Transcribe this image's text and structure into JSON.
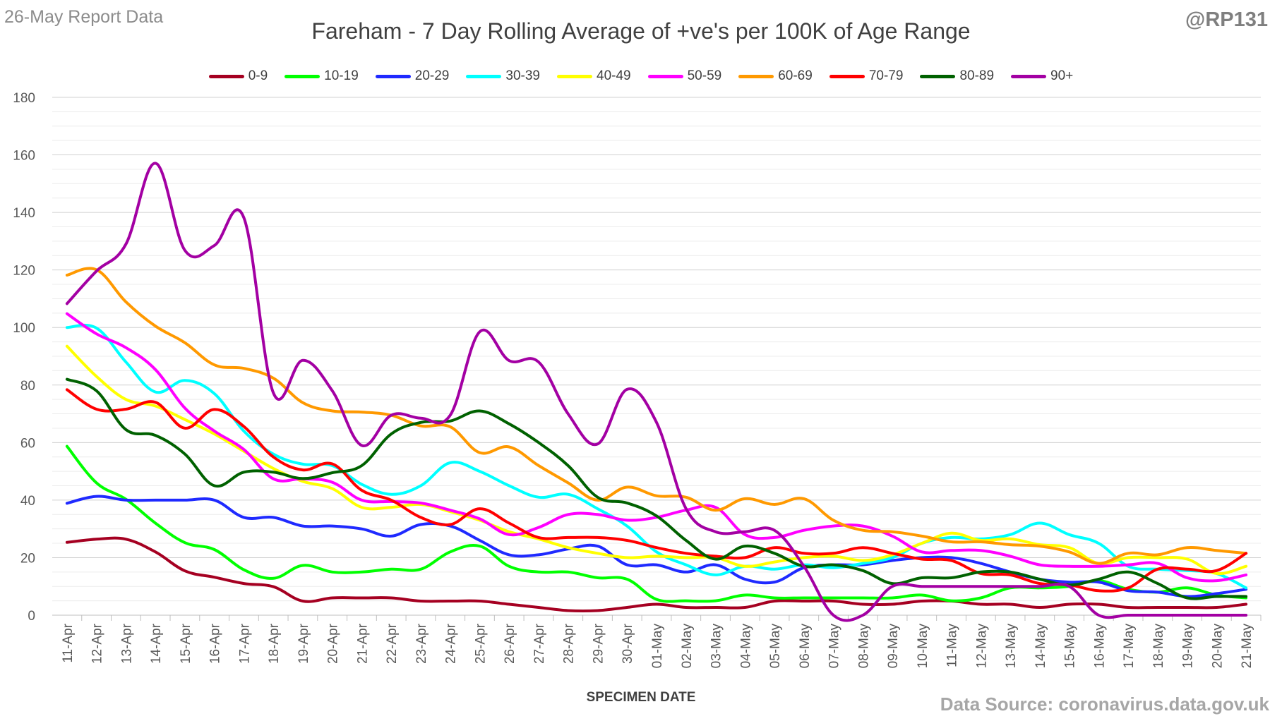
{
  "header": {
    "report_date": "26-May Report Data",
    "handle": "@RP131",
    "source": "Data Source: coronavirus.data.gov.uk"
  },
  "chart_data": {
    "type": "line",
    "title": "Fareham - 7 Day Rolling Average of +ve's per 100K of Age Range",
    "xlabel": "SPECIMEN DATE",
    "ylabel": "",
    "ylim": [
      0,
      180
    ],
    "yticks": [
      0,
      20,
      40,
      60,
      80,
      100,
      120,
      140,
      160,
      180
    ],
    "grid": true,
    "legend_position": "top",
    "categories": [
      "11-Apr",
      "12-Apr",
      "13-Apr",
      "14-Apr",
      "15-Apr",
      "16-Apr",
      "17-Apr",
      "18-Apr",
      "19-Apr",
      "20-Apr",
      "21-Apr",
      "22-Apr",
      "23-Apr",
      "24-Apr",
      "25-Apr",
      "26-Apr",
      "27-Apr",
      "28-Apr",
      "29-Apr",
      "30-Apr",
      "01-May",
      "02-May",
      "03-May",
      "04-May",
      "05-May",
      "06-May",
      "07-May",
      "08-May",
      "09-May",
      "10-May",
      "11-May",
      "12-May",
      "13-May",
      "14-May",
      "15-May",
      "16-May",
      "17-May",
      "18-May",
      "19-May",
      "20-May",
      "21-May"
    ],
    "series": [
      {
        "name": "0-9",
        "color": "#a50021",
        "values": [
          25.3,
          26.4,
          26.4,
          22.0,
          15.4,
          13.2,
          11.0,
          9.9,
          4.9,
          6.0,
          6.0,
          6.0,
          4.9,
          4.9,
          4.9,
          3.8,
          2.7,
          1.6,
          1.6,
          2.7,
          3.8,
          2.7,
          2.7,
          2.7,
          4.9,
          4.9,
          4.9,
          3.8,
          3.8,
          4.9,
          4.9,
          3.8,
          3.8,
          2.7,
          3.8,
          3.8,
          2.7,
          2.7,
          2.7,
          2.7,
          3.8
        ]
      },
      {
        "name": "10-19",
        "color": "#00ff00",
        "values": [
          58.7,
          46.0,
          40.3,
          32.0,
          25.2,
          22.8,
          15.8,
          12.8,
          17.3,
          15.0,
          15.0,
          16.0,
          16.0,
          22.0,
          24.0,
          17.0,
          15.0,
          15.0,
          13.0,
          12.5,
          5.5,
          5.0,
          5.0,
          7.0,
          6.0,
          6.0,
          6.0,
          6.0,
          6.0,
          7.0,
          5.0,
          6.0,
          9.5,
          9.5,
          10.0,
          12.0,
          9.0,
          8.0,
          9.5,
          7.0,
          6.0
        ]
      },
      {
        "name": "20-29",
        "color": "#1f2aff",
        "values": [
          38.9,
          41.3,
          40.0,
          40.0,
          40.0,
          40.0,
          34.0,
          34.0,
          31.0,
          31.0,
          30.0,
          27.5,
          31.5,
          31.0,
          26.0,
          21.0,
          21.0,
          23.0,
          24.0,
          17.5,
          17.5,
          15.0,
          17.5,
          12.5,
          11.5,
          16.5,
          17.5,
          17.5,
          19.0,
          20.0,
          20.0,
          18.0,
          15.0,
          12.5,
          11.5,
          11.5,
          8.5,
          8.0,
          6.5,
          7.5,
          9.0
        ]
      },
      {
        "name": "30-39",
        "color": "#00ffff",
        "values": [
          100.0,
          99.8,
          88.0,
          77.6,
          81.6,
          77.0,
          64.0,
          56.0,
          52.5,
          52.0,
          45.5,
          42.0,
          45.0,
          53.0,
          50.0,
          45.0,
          41.0,
          42.0,
          37.0,
          31.0,
          22.0,
          17.5,
          14.0,
          17.0,
          16.0,
          17.5,
          16.5,
          18.0,
          20.0,
          25.0,
          27.0,
          26.5,
          28.0,
          32.0,
          28.0,
          25.0,
          17.0,
          16.0,
          15.5,
          14.5,
          9.5
        ]
      },
      {
        "name": "40-49",
        "color": "#ffff00",
        "values": [
          93.5,
          83.0,
          75.0,
          72.7,
          68.0,
          63.0,
          57.0,
          51.0,
          46.5,
          44.0,
          37.5,
          37.5,
          38.5,
          36.0,
          33.0,
          29.0,
          26.5,
          23.5,
          21.5,
          20.0,
          20.5,
          20.0,
          20.0,
          17.0,
          18.5,
          20.0,
          20.5,
          19.0,
          21.0,
          25.0,
          28.5,
          26.0,
          26.5,
          24.5,
          23.5,
          18.0,
          20.0,
          20.0,
          19.5,
          14.5,
          17.0
        ]
      },
      {
        "name": "50-59",
        "color": "#ff00ff",
        "values": [
          104.8,
          97.8,
          93.0,
          85.4,
          72.0,
          64.0,
          57.6,
          47.4,
          47.4,
          46.2,
          40.0,
          39.5,
          39.0,
          36.5,
          33.5,
          28.0,
          30.5,
          35.0,
          35.0,
          33.0,
          34.0,
          36.5,
          37.5,
          28.0,
          27.0,
          29.5,
          31.0,
          31.0,
          27.5,
          22.0,
          22.5,
          22.5,
          20.5,
          17.5,
          17.0,
          17.0,
          17.5,
          18.0,
          13.0,
          12.0,
          14.0
        ]
      },
      {
        "name": "60-69",
        "color": "#ff9900",
        "values": [
          118.2,
          120.1,
          108.9,
          100.5,
          94.7,
          87.0,
          85.8,
          82.4,
          73.9,
          71.0,
          70.6,
          69.5,
          65.8,
          65.5,
          56.5,
          58.5,
          52.0,
          46.0,
          40.0,
          44.5,
          41.5,
          41.0,
          36.5,
          40.5,
          38.5,
          40.5,
          33.0,
          29.5,
          29.0,
          27.5,
          25.5,
          25.5,
          24.5,
          24.0,
          22.0,
          18.0,
          21.5,
          21.0,
          23.5,
          22.5,
          21.5
        ]
      },
      {
        "name": "70-79",
        "color": "#ff0000",
        "values": [
          78.4,
          71.6,
          71.6,
          74.0,
          65.0,
          71.5,
          65.6,
          55.0,
          50.5,
          52.6,
          43.4,
          40.0,
          34.0,
          31.5,
          37.0,
          32.0,
          27.0,
          27.0,
          27.0,
          26.0,
          23.5,
          21.5,
          20.5,
          20.0,
          23.5,
          21.5,
          21.5,
          23.5,
          21.5,
          19.5,
          19.0,
          14.5,
          14.0,
          11.0,
          10.5,
          8.5,
          9.5,
          16.0,
          16.0,
          15.5,
          21.5
        ]
      },
      {
        "name": "80-89",
        "color": "#006100",
        "values": [
          82.0,
          78.0,
          64.5,
          62.5,
          56.0,
          45.0,
          49.7,
          49.7,
          47.5,
          49.5,
          52.0,
          63.0,
          67.0,
          67.5,
          71.0,
          66.5,
          60.0,
          52.0,
          41.0,
          39.0,
          34.5,
          26.0,
          19.5,
          24.0,
          21.5,
          17.0,
          17.5,
          15.5,
          11.0,
          13.0,
          13.0,
          15.0,
          15.0,
          12.5,
          10.5,
          12.5,
          15.0,
          11.0,
          6.0,
          6.5,
          6.5
        ]
      },
      {
        "name": "90+",
        "color": "#a300a3",
        "values": [
          108.3,
          119.6,
          129.0,
          157.1,
          126.8,
          128.5,
          138.2,
          77.3,
          88.6,
          78.0,
          59.0,
          69.5,
          68.5,
          69.5,
          98.5,
          88.5,
          88.0,
          70.0,
          59.5,
          78.5,
          67.0,
          37.0,
          29.0,
          29.0,
          29.5,
          17.0,
          0.0,
          0.0,
          10.0,
          10.0,
          10.0,
          10.0,
          10.0,
          10.0,
          10.0,
          0.0,
          0.0,
          0.0,
          0.0,
          0.0,
          0.0
        ]
      }
    ]
  }
}
